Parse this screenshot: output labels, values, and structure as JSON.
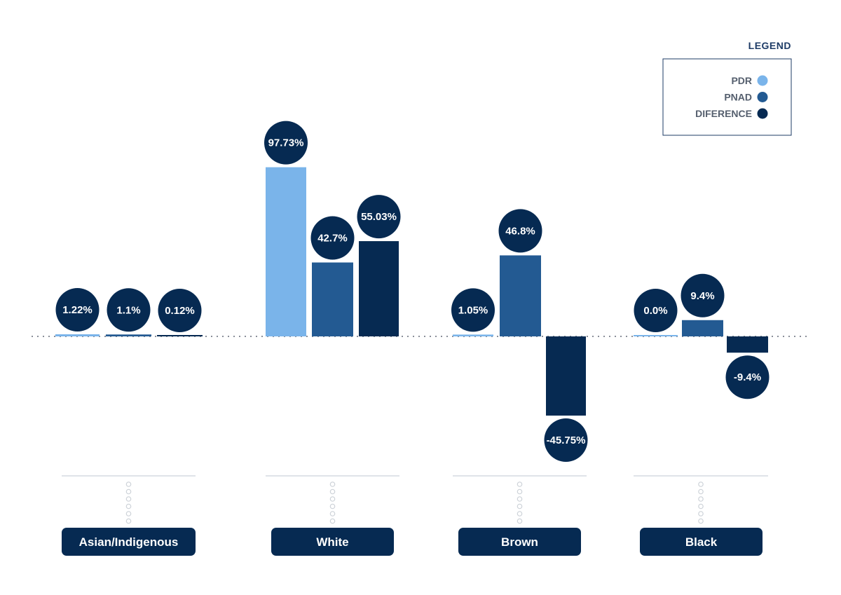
{
  "chart_data": {
    "type": "bar",
    "categories": [
      "Asian/Indigenous",
      "White",
      "Brown",
      "Black"
    ],
    "series": [
      {
        "name": "PDR",
        "color": "#7ab4ea",
        "values": [
          1.22,
          97.73,
          1.05,
          0.0
        ],
        "labels": [
          "1.22%",
          "97.73%",
          "1.05%",
          "0.0%"
        ]
      },
      {
        "name": "PNAD",
        "color": "#235a92",
        "values": [
          1.1,
          42.7,
          46.8,
          9.4
        ],
        "labels": [
          "1.1%",
          "42.7%",
          "46.8%",
          "9.4%"
        ]
      },
      {
        "name": "DIFERENCE",
        "color": "#062a52",
        "values": [
          0.12,
          55.03,
          -45.75,
          -9.4
        ],
        "labels": [
          "0.12%",
          "55.03%",
          "-45.75%",
          "-9.4%"
        ]
      }
    ],
    "legend": {
      "title": "LEGEND",
      "position": "top-right"
    },
    "label_bubble_color": "#062a52",
    "zero_line": true
  }
}
